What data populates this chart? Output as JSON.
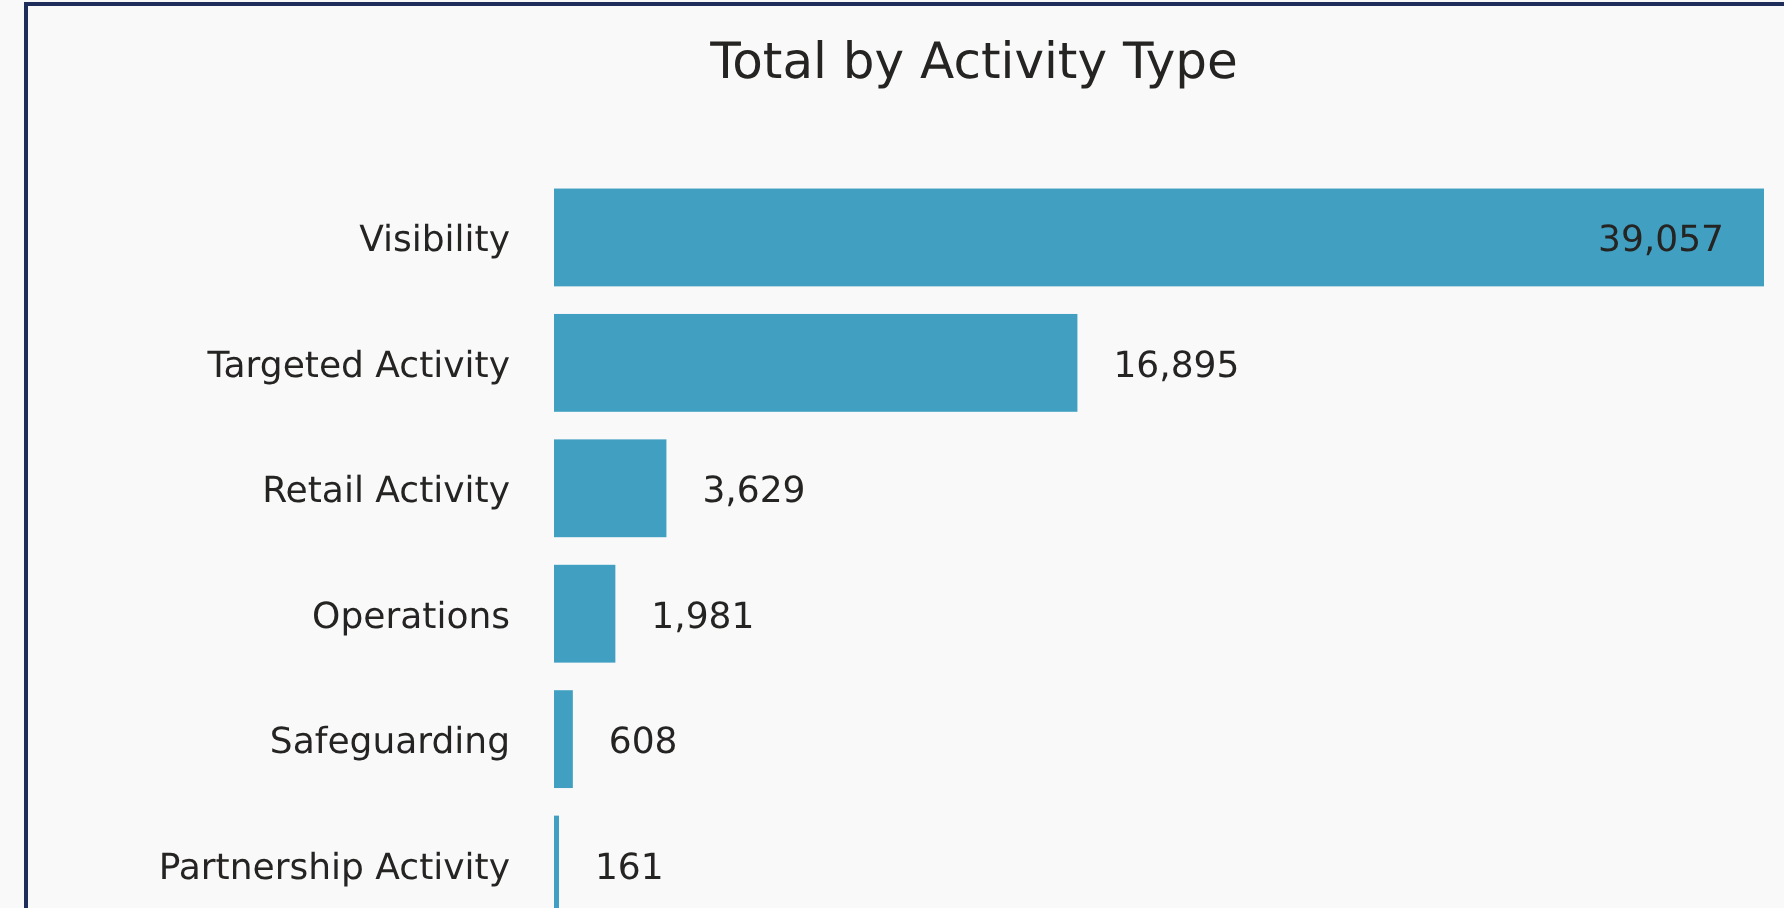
{
  "chart_data": {
    "type": "bar",
    "orientation": "horizontal",
    "title": "Total by Activity Type",
    "categories": [
      "Visibility",
      "Targeted Activity",
      "Retail Activity",
      "Operations",
      "Safeguarding",
      "Partnership Activity"
    ],
    "values": [
      39057,
      16895,
      3629,
      1981,
      608,
      161
    ],
    "value_labels": [
      "39,057",
      "16,895",
      "3,629",
      "1,981",
      "608",
      "161"
    ],
    "color": "#41a0c2"
  }
}
